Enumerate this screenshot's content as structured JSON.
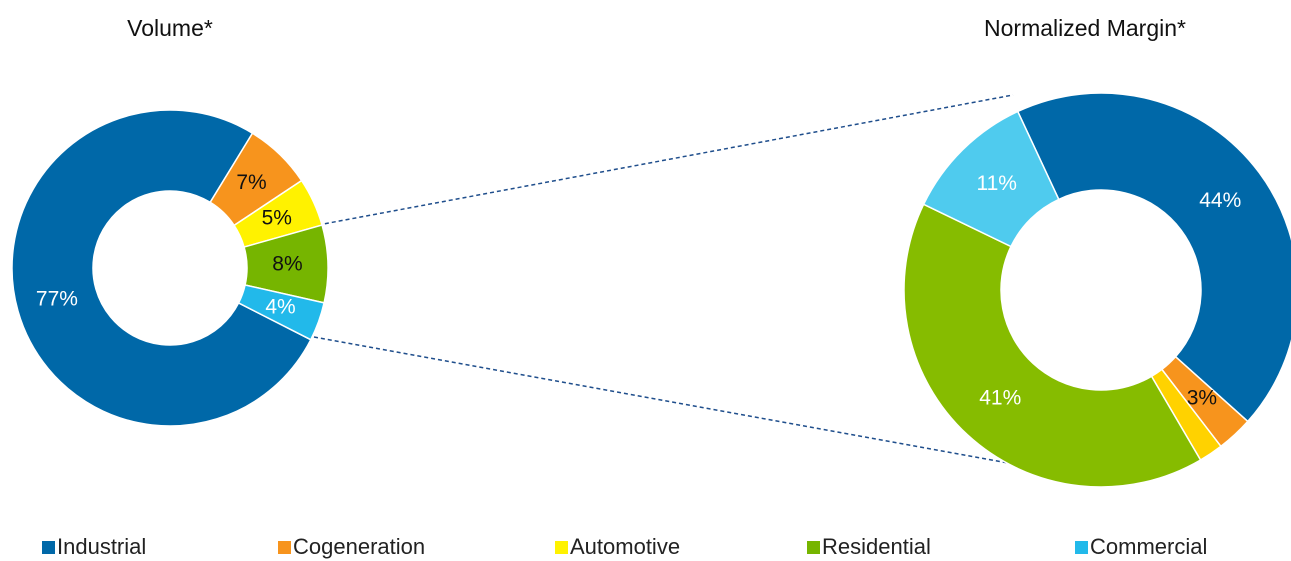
{
  "chart_data": [
    {
      "type": "donut",
      "title": "Volume*",
      "categories": [
        "Industrial",
        "Cogeneration",
        "Automotive",
        "Residential",
        "Commercial"
      ],
      "values": [
        77,
        7,
        5,
        8,
        4
      ],
      "value_labels": [
        "77%",
        "7%",
        "5%",
        "8%",
        "4%"
      ],
      "colors": [
        "#0068a8",
        "#f7941d",
        "#fff200",
        "#76b500",
        "#22b9ea"
      ],
      "legend": "bottom"
    },
    {
      "type": "donut",
      "title": "Normalized Margin*",
      "categories": [
        "Industrial",
        "Cogeneration",
        "Automotive",
        "Residential",
        "Commercial"
      ],
      "values": [
        44,
        3,
        2,
        41,
        11
      ],
      "value_labels": [
        "44%",
        "3%",
        "2%",
        "41%",
        "11%"
      ],
      "colors": [
        "#0068a8",
        "#f7941d",
        "#ffd200",
        "#86bc00",
        "#4fcbee"
      ]
    }
  ]
}
